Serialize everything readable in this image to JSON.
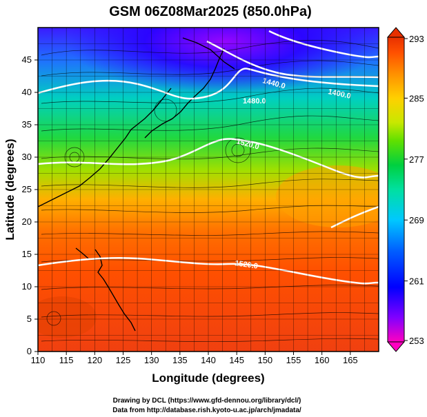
{
  "title": "GSM 06Z08Mar2025 (850.0hPa)",
  "x_axis": {
    "label": "Longitude (degrees)",
    "ticks": [
      "110",
      "115",
      "120",
      "125",
      "130",
      "135",
      "140",
      "145",
      "150",
      "155",
      "160",
      "165"
    ],
    "range": [
      110,
      170
    ]
  },
  "y_axis": {
    "label": "Latitude  (degrees)",
    "ticks": [
      "0",
      "5",
      "10",
      "15",
      "20",
      "25",
      "30",
      "35",
      "40",
      "45"
    ],
    "range": [
      0,
      50
    ]
  },
  "colorbar": {
    "ticks": [
      "293",
      "285",
      "277",
      "269",
      "261",
      "253"
    ],
    "range": [
      253,
      293
    ],
    "colors": [
      "#ff00c0",
      "#8000ff",
      "#0000ff",
      "#0060ff",
      "#00c8ff",
      "#00e0a0",
      "#00d040",
      "#60e000",
      "#c8e800",
      "#ffd000",
      "#ff9000",
      "#ff5000",
      "#e83000"
    ]
  },
  "contours": [
    {
      "label": "1440.0"
    },
    {
      "label": "1480.0"
    },
    {
      "label": "1400.0"
    },
    {
      "label": "1520.0"
    },
    {
      "label": "1520.0"
    }
  ],
  "credits": {
    "line1": "Drawing by DCL (https://www.gfd-dennou.org/library/dcl/)",
    "line2": "Data from http://database.rish.kyoto-u.ac.jp/arch/jmadata/"
  }
}
